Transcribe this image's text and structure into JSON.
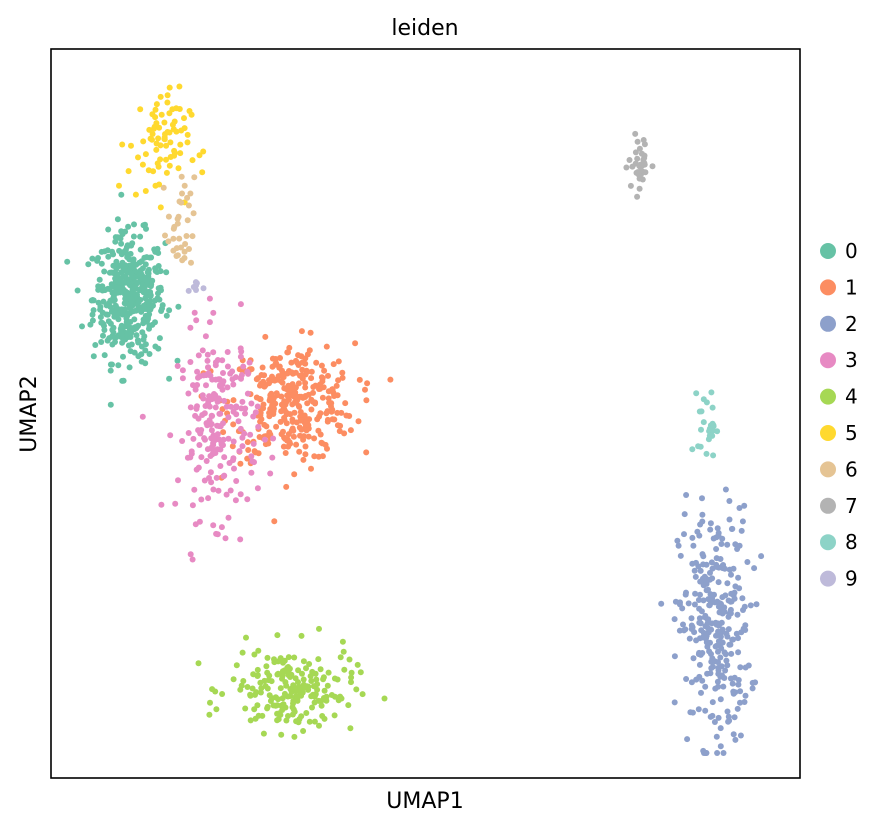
{
  "chart_data": {
    "type": "scatter",
    "title": "leiden",
    "xlabel": "UMAP1",
    "ylabel": "UMAP2",
    "ticks": "none",
    "grid": false,
    "legend_position": "right",
    "xlim": [
      0,
      100
    ],
    "ylim": [
      0,
      100
    ],
    "series": [
      {
        "name": "0",
        "color": "#66c2a5",
        "n": 420,
        "center": [
          10,
          66
        ],
        "spread": [
          4.0,
          7.5
        ]
      },
      {
        "name": "1",
        "color": "#fc8d62",
        "n": 330,
        "center": [
          32,
          51
        ],
        "spread": [
          7.0,
          7.0
        ]
      },
      {
        "name": "2",
        "color": "#8da0cb",
        "n": 300,
        "center": [
          89,
          19
        ],
        "spread": [
          4.0,
          14.0
        ]
      },
      {
        "name": "3",
        "color": "#e78ac3",
        "n": 220,
        "center": [
          22,
          48
        ],
        "spread": [
          4.5,
          11.0
        ]
      },
      {
        "name": "4",
        "color": "#a6d854",
        "n": 200,
        "center": [
          32,
          10
        ],
        "spread": [
          7.0,
          5.0
        ]
      },
      {
        "name": "5",
        "color": "#ffd92f",
        "n": 80,
        "center": [
          14,
          88
        ],
        "spread": [
          3.5,
          6.5
        ]
      },
      {
        "name": "6",
        "color": "#e5c494",
        "n": 35,
        "center": [
          17,
          76
        ],
        "spread": [
          1.5,
          6.0
        ]
      },
      {
        "name": "7",
        "color": "#b3b3b3",
        "n": 35,
        "center": [
          79,
          85
        ],
        "spread": [
          1.3,
          3.5
        ]
      },
      {
        "name": "8",
        "color": "#8dd3c7",
        "n": 26,
        "center": [
          88,
          48
        ],
        "spread": [
          1.0,
          4.0
        ]
      },
      {
        "name": "9",
        "color": "#bebada",
        "n": 7,
        "center": [
          19,
          67.5
        ],
        "spread": [
          1.0,
          0.8
        ]
      }
    ]
  }
}
